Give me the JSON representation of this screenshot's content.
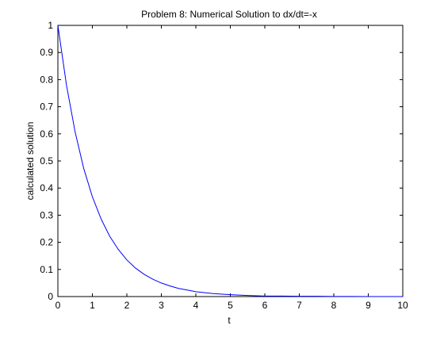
{
  "chart_data": {
    "type": "line",
    "title": "Problem 8: Numerical Solution to dx/dt=-x",
    "xlabel": "t",
    "ylabel": "calculated solution",
    "xlim": [
      0,
      10
    ],
    "ylim": [
      0,
      1
    ],
    "xticks": [
      0,
      1,
      2,
      3,
      4,
      5,
      6,
      7,
      8,
      9,
      10
    ],
    "yticks": [
      0,
      0.1,
      0.2,
      0.3,
      0.4,
      0.5,
      0.6,
      0.7,
      0.8,
      0.9,
      1
    ],
    "grid": false,
    "series": [
      {
        "color": "#0000ff",
        "x": [
          0,
          0.25,
          0.5,
          0.75,
          1,
          1.25,
          1.5,
          1.75,
          2,
          2.25,
          2.5,
          2.75,
          3,
          3.25,
          3.5,
          3.75,
          4,
          4.5,
          5,
          5.5,
          6,
          6.5,
          7,
          7.5,
          8,
          8.5,
          9,
          9.5,
          10
        ],
        "y": [
          1,
          0.779,
          0.607,
          0.472,
          0.368,
          0.287,
          0.223,
          0.174,
          0.135,
          0.105,
          0.082,
          0.064,
          0.05,
          0.039,
          0.03,
          0.024,
          0.018,
          0.011,
          0.007,
          0.004,
          0.002,
          0.002,
          0.001,
          0.001,
          0.0003,
          0.0002,
          0.0001,
          0.0001,
          5e-05
        ]
      }
    ]
  }
}
